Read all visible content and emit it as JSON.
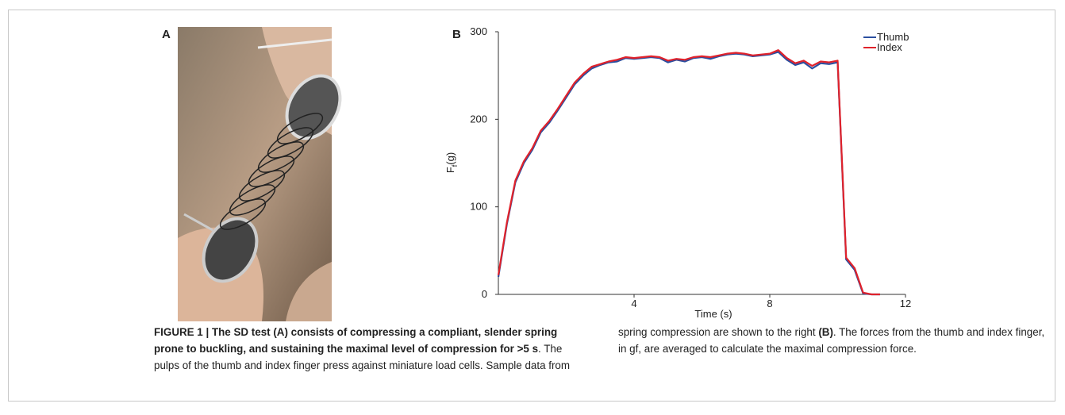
{
  "panels": {
    "a": "A",
    "b": "B"
  },
  "chart_data": {
    "type": "line",
    "x_label": "Time (s)",
    "y_label": {
      "main": "F",
      "sub": "f",
      "unit": "(g)"
    },
    "x": [
      0,
      0.25,
      0.5,
      0.75,
      1,
      1.25,
      1.5,
      1.75,
      2,
      2.25,
      2.5,
      2.75,
      3,
      3.25,
      3.5,
      3.75,
      4,
      4.25,
      4.5,
      4.75,
      5,
      5.25,
      5.5,
      5.75,
      6,
      6.25,
      6.5,
      6.75,
      7,
      7.25,
      7.5,
      7.75,
      8,
      8.25,
      8.5,
      8.75,
      9,
      9.25,
      9.5,
      9.75,
      10,
      10.25,
      10.5,
      10.75,
      11,
      11.25
    ],
    "series": [
      {
        "name": "Thumb",
        "color": "#2b4fa0",
        "values": [
          20,
          80,
          128,
          150,
          165,
          185,
          196,
          210,
          225,
          240,
          250,
          258,
          262,
          265,
          266,
          270,
          269,
          270,
          271,
          270,
          265,
          268,
          266,
          270,
          271,
          269,
          272,
          274,
          275,
          274,
          272,
          273,
          274,
          277,
          268,
          262,
          265,
          258,
          264,
          263,
          265,
          40,
          28,
          1,
          0,
          0
        ]
      },
      {
        "name": "Index",
        "color": "#e0222b",
        "values": [
          22,
          82,
          130,
          152,
          167,
          187,
          198,
          212,
          227,
          242,
          252,
          260,
          263,
          266,
          268,
          271,
          270,
          271,
          272,
          271,
          267,
          269,
          268,
          271,
          272,
          271,
          273,
          275,
          276,
          275,
          273,
          274,
          275,
          279,
          270,
          264,
          267,
          261,
          266,
          265,
          267,
          42,
          30,
          2,
          0,
          0
        ]
      }
    ],
    "xlim": [
      0,
      12
    ],
    "xticks": [
      4,
      8,
      12
    ],
    "ylim": [
      0,
      300
    ],
    "yticks": [
      0,
      100,
      200,
      300
    ],
    "grid": false,
    "legend": "top-right"
  },
  "caption": {
    "lead": "FIGURE 1 | The SD test (A) consists of compressing a compliant, slender spring prone to buckling, and sustaining the maximal level of compression for >5 s",
    "text_1": ". The pulps of the thumb and index finger press against miniature load cells. Sample data from spring compression are shown to the right ",
    "ref_b": "(B)",
    "text_2": ". The forces from the thumb and index finger, in gf, are averaged to calculate the maximal compression force."
  }
}
